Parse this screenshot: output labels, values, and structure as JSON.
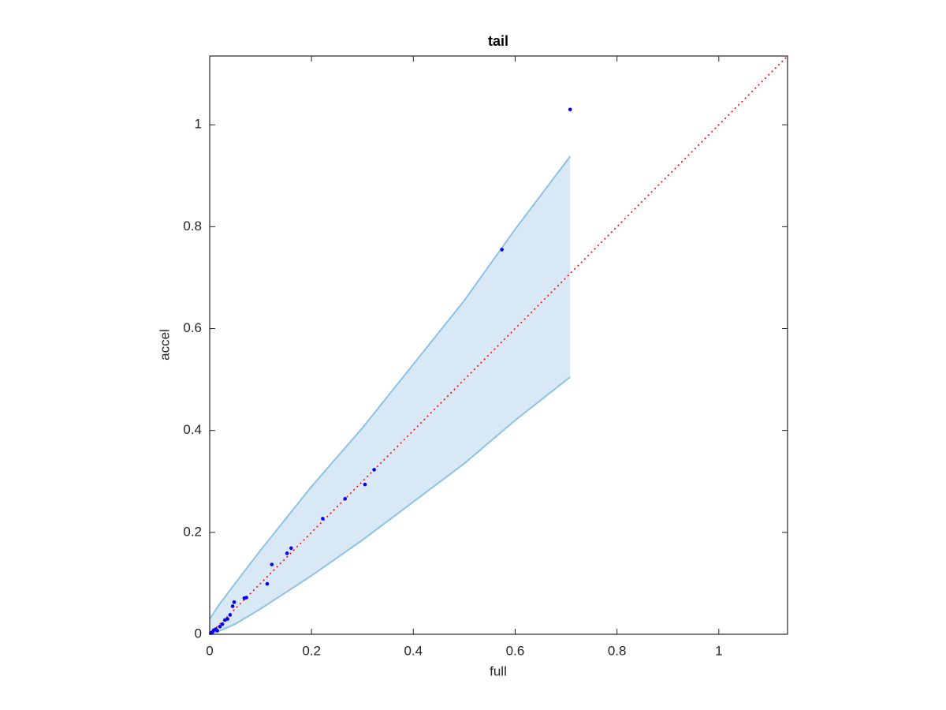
{
  "chart_data": {
    "type": "scatter",
    "title": "tail",
    "x_label": "full",
    "y_label": "accel",
    "xlim": [
      0,
      1.135
    ],
    "ylim": [
      0,
      1.135
    ],
    "xticks": [
      0,
      0.2,
      0.4,
      0.6,
      0.8,
      1
    ],
    "yticks": [
      0,
      0.2,
      0.4,
      0.6,
      0.8,
      1
    ],
    "series": [
      {
        "type": "band",
        "color": "#d9e8f5",
        "edge_color": "#8cc2e5",
        "x": [
          0,
          0.02,
          0.05,
          0.1,
          0.2,
          0.3,
          0.4,
          0.5,
          0.6,
          0.708
        ],
        "upper": [
          0.03,
          0.06,
          0.1,
          0.165,
          0.29,
          0.405,
          0.53,
          0.655,
          0.795,
          0.938
        ],
        "lower": [
          0,
          0.007,
          0.02,
          0.05,
          0.115,
          0.185,
          0.26,
          0.335,
          0.42,
          0.505
        ]
      },
      {
        "type": "line",
        "color": "#ff0000",
        "style": "dotted",
        "x": [
          0,
          1.135
        ],
        "values": [
          0,
          1.135
        ]
      },
      {
        "type": "scatter",
        "color": "#0000ff",
        "x": [
          0.002,
          0.005,
          0.008,
          0.012,
          0.015,
          0.02,
          0.025,
          0.03,
          0.035,
          0.04,
          0.045,
          0.048,
          0.068,
          0.072,
          0.113,
          0.122,
          0.152,
          0.16,
          0.222,
          0.266,
          0.305,
          0.323,
          0.574,
          0.708
        ],
        "values": [
          0.002,
          0.004,
          0.008,
          0.01,
          0.007,
          0.015,
          0.02,
          0.028,
          0.03,
          0.038,
          0.055,
          0.063,
          0.071,
          0.072,
          0.099,
          0.137,
          0.159,
          0.169,
          0.227,
          0.266,
          0.294,
          0.323,
          0.755,
          1.03
        ]
      }
    ]
  }
}
